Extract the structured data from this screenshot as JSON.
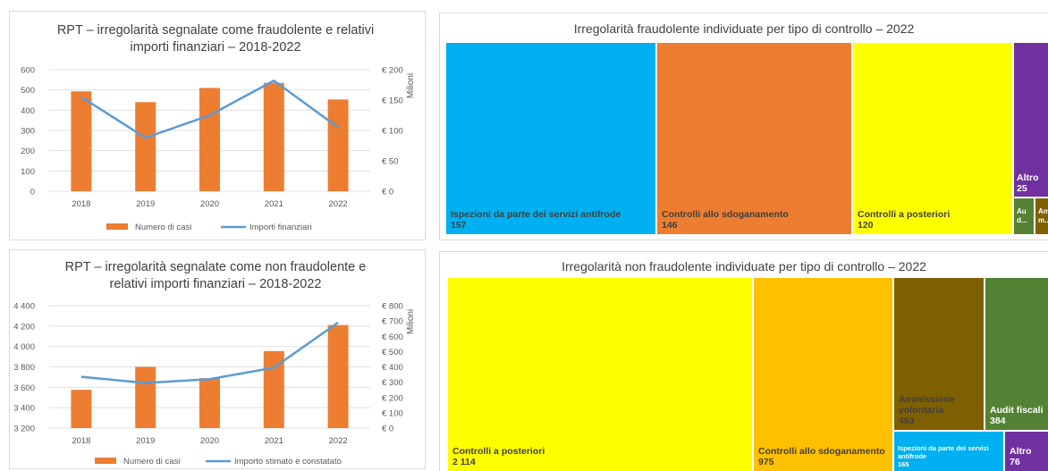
{
  "fraud_chart": {
    "title_line1": "RPT – irregolarità segnalate come fraudolente e relativi",
    "title_line2": "importi finanziari – 2018-2022",
    "y2_label": "Milioni",
    "legend_bar": "Numero di casi",
    "legend_line": "Importi finanziari",
    "y_ticks": [
      "600",
      "500",
      "400",
      "300",
      "200",
      "100",
      "0"
    ],
    "y2_ticks": [
      "€ 200",
      "€ 150",
      "€ 100",
      "€ 50",
      "€ 0"
    ]
  },
  "nonfraud_chart": {
    "title_line1": "RPT – irregolarità segnalate come non fraudolente e",
    "title_line2": "relativi importi finanziari – 2018-2022",
    "y2_label": "Milioni",
    "legend_bar": "Numero di casi",
    "legend_line": "Importo stimato e constatato",
    "y_ticks": [
      "4 400",
      "4 200",
      "4 000",
      "3 800",
      "3 600",
      "3 400",
      "3 200"
    ],
    "y2_ticks": [
      "€ 800",
      "€ 700",
      "€ 600",
      "€ 500",
      "€ 400",
      "€ 300",
      "€ 200",
      "€ 100",
      "€ 0"
    ]
  },
  "fraud_treemap": {
    "title": "Irregolarità fraudolente individuate per tipo di controllo – 2022",
    "tiles": [
      {
        "label": "Ispezioni da parte dei servizi antifrode",
        "value": "157",
        "color": "#00b0f0"
      },
      {
        "label": "Controlli allo sdoganamento",
        "value": "146",
        "color": "#ed7d31"
      },
      {
        "label": "Controlli a posteriori",
        "value": "120",
        "color": "#ffff00"
      },
      {
        "label": "Altro",
        "value": "25",
        "color": "#7030a0"
      },
      {
        "label": "Au",
        "value": "d...",
        "color": "#548235"
      },
      {
        "label": "Am",
        "value": "m...",
        "color": "#7f6000"
      }
    ]
  },
  "nonfraud_treemap": {
    "title": "Irregolarità non fraudolente individuate per tipo di controllo – 2022",
    "tiles": [
      {
        "label": "Controlli a posteriori",
        "value": "2 114",
        "color": "#ffff00"
      },
      {
        "label": "Controlli allo sdoganamento",
        "value": "975",
        "color": "#ffc000"
      },
      {
        "label": "Ammissione volontaria",
        "value": "493",
        "color": "#7f6000"
      },
      {
        "label": "Audit fiscali",
        "value": "384",
        "color": "#548235"
      },
      {
        "label": "Ispezioni da parte dei servizi antifrode",
        "value": "165",
        "color": "#00b0f0"
      },
      {
        "label": "Altro",
        "value": "76",
        "color": "#7030a0"
      }
    ]
  },
  "chart_data": [
    {
      "type": "bar",
      "title": "RPT – irregolarità segnalate come fraudolente e relativi importi finanziari – 2018-2022",
      "categories": [
        "2018",
        "2019",
        "2020",
        "2021",
        "2022"
      ],
      "series": [
        {
          "name": "Numero di casi",
          "type": "bar",
          "axis": "left",
          "values": [
            493,
            440,
            510,
            535,
            453
          ],
          "color": "#ed7d31"
        },
        {
          "name": "Importi finanziari",
          "type": "line",
          "axis": "right",
          "values": [
            155,
            88,
            125,
            182,
            105
          ],
          "color": "#5b9bd5"
        }
      ],
      "ylim": [
        0,
        600
      ],
      "y2lim": [
        0,
        200
      ],
      "y2label": "Milioni",
      "legend": "bottom"
    },
    {
      "type": "bar",
      "title": "RPT – irregolarità segnalate come non fraudolente e relativi importi finanziari – 2018-2022",
      "categories": [
        "2018",
        "2019",
        "2020",
        "2021",
        "2022"
      ],
      "series": [
        {
          "name": "Numero di casi",
          "type": "bar",
          "axis": "left",
          "values": [
            3575,
            3800,
            3690,
            3955,
            4210
          ],
          "color": "#ed7d31"
        },
        {
          "name": "Importo stimato e constatato",
          "type": "line",
          "axis": "right",
          "values": [
            335,
            295,
            320,
            395,
            690
          ],
          "color": "#5b9bd5"
        }
      ],
      "ylim": [
        3200,
        4400
      ],
      "y2lim": [
        0,
        800
      ],
      "y2label": "Milioni",
      "legend": "bottom"
    },
    {
      "type": "treemap",
      "title": "Irregolarità fraudolente individuate per tipo di controllo – 2022",
      "categories": [
        "Ispezioni da parte dei servizi antifrode",
        "Controlli allo sdoganamento",
        "Controlli a posteriori",
        "Altro",
        "Au d...",
        "Am m..."
      ],
      "values": [
        157,
        146,
        120,
        25,
        null,
        null
      ]
    },
    {
      "type": "treemap",
      "title": "Irregolarità non fraudolente individuate per tipo di controllo – 2022",
      "categories": [
        "Controlli a posteriori",
        "Controlli allo sdoganamento",
        "Ammissione volontaria",
        "Audit fiscali",
        "Ispezioni da parte dei servizi antifrode",
        "Altro"
      ],
      "values": [
        2114,
        975,
        493,
        384,
        165,
        76
      ]
    }
  ]
}
